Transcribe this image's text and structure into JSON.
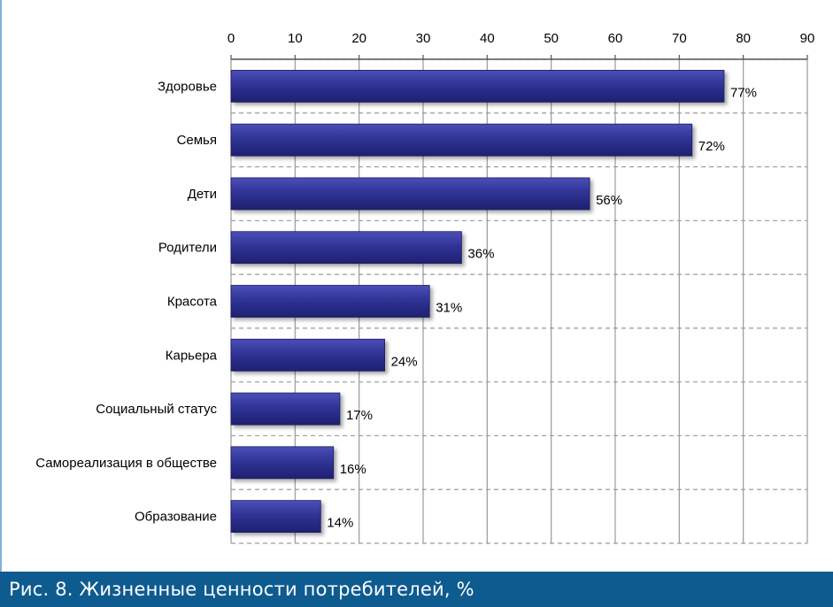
{
  "chart_data": {
    "type": "bar",
    "orientation": "horizontal",
    "categories": [
      "Здоровье",
      "Семья",
      "Дети",
      "Родители",
      "Красота",
      "Карьера",
      "Социальный статус",
      "Самореализация в обществе",
      "Образование"
    ],
    "values": [
      77,
      72,
      56,
      36,
      31,
      24,
      17,
      16,
      14
    ],
    "value_labels": [
      "77%",
      "72%",
      "56%",
      "36%",
      "31%",
      "24%",
      "17%",
      "16%",
      "14%"
    ],
    "xlim": [
      0,
      90
    ],
    "x_ticks": [
      0,
      10,
      20,
      30,
      40,
      50,
      60,
      70,
      80,
      90
    ],
    "x_tick_labels": [
      "0",
      "10",
      "20",
      "30",
      "40",
      "50",
      "60",
      "70",
      "80",
      "90"
    ],
    "axis_position": "top",
    "grid": true,
    "bar_color": "#2e3192",
    "grid_color": "#9a9a9a"
  },
  "caption": {
    "text": "Рис. 8. Жизненные ценности потребителей, %",
    "background": "#0e5b8f",
    "color": "#ffffff"
  }
}
